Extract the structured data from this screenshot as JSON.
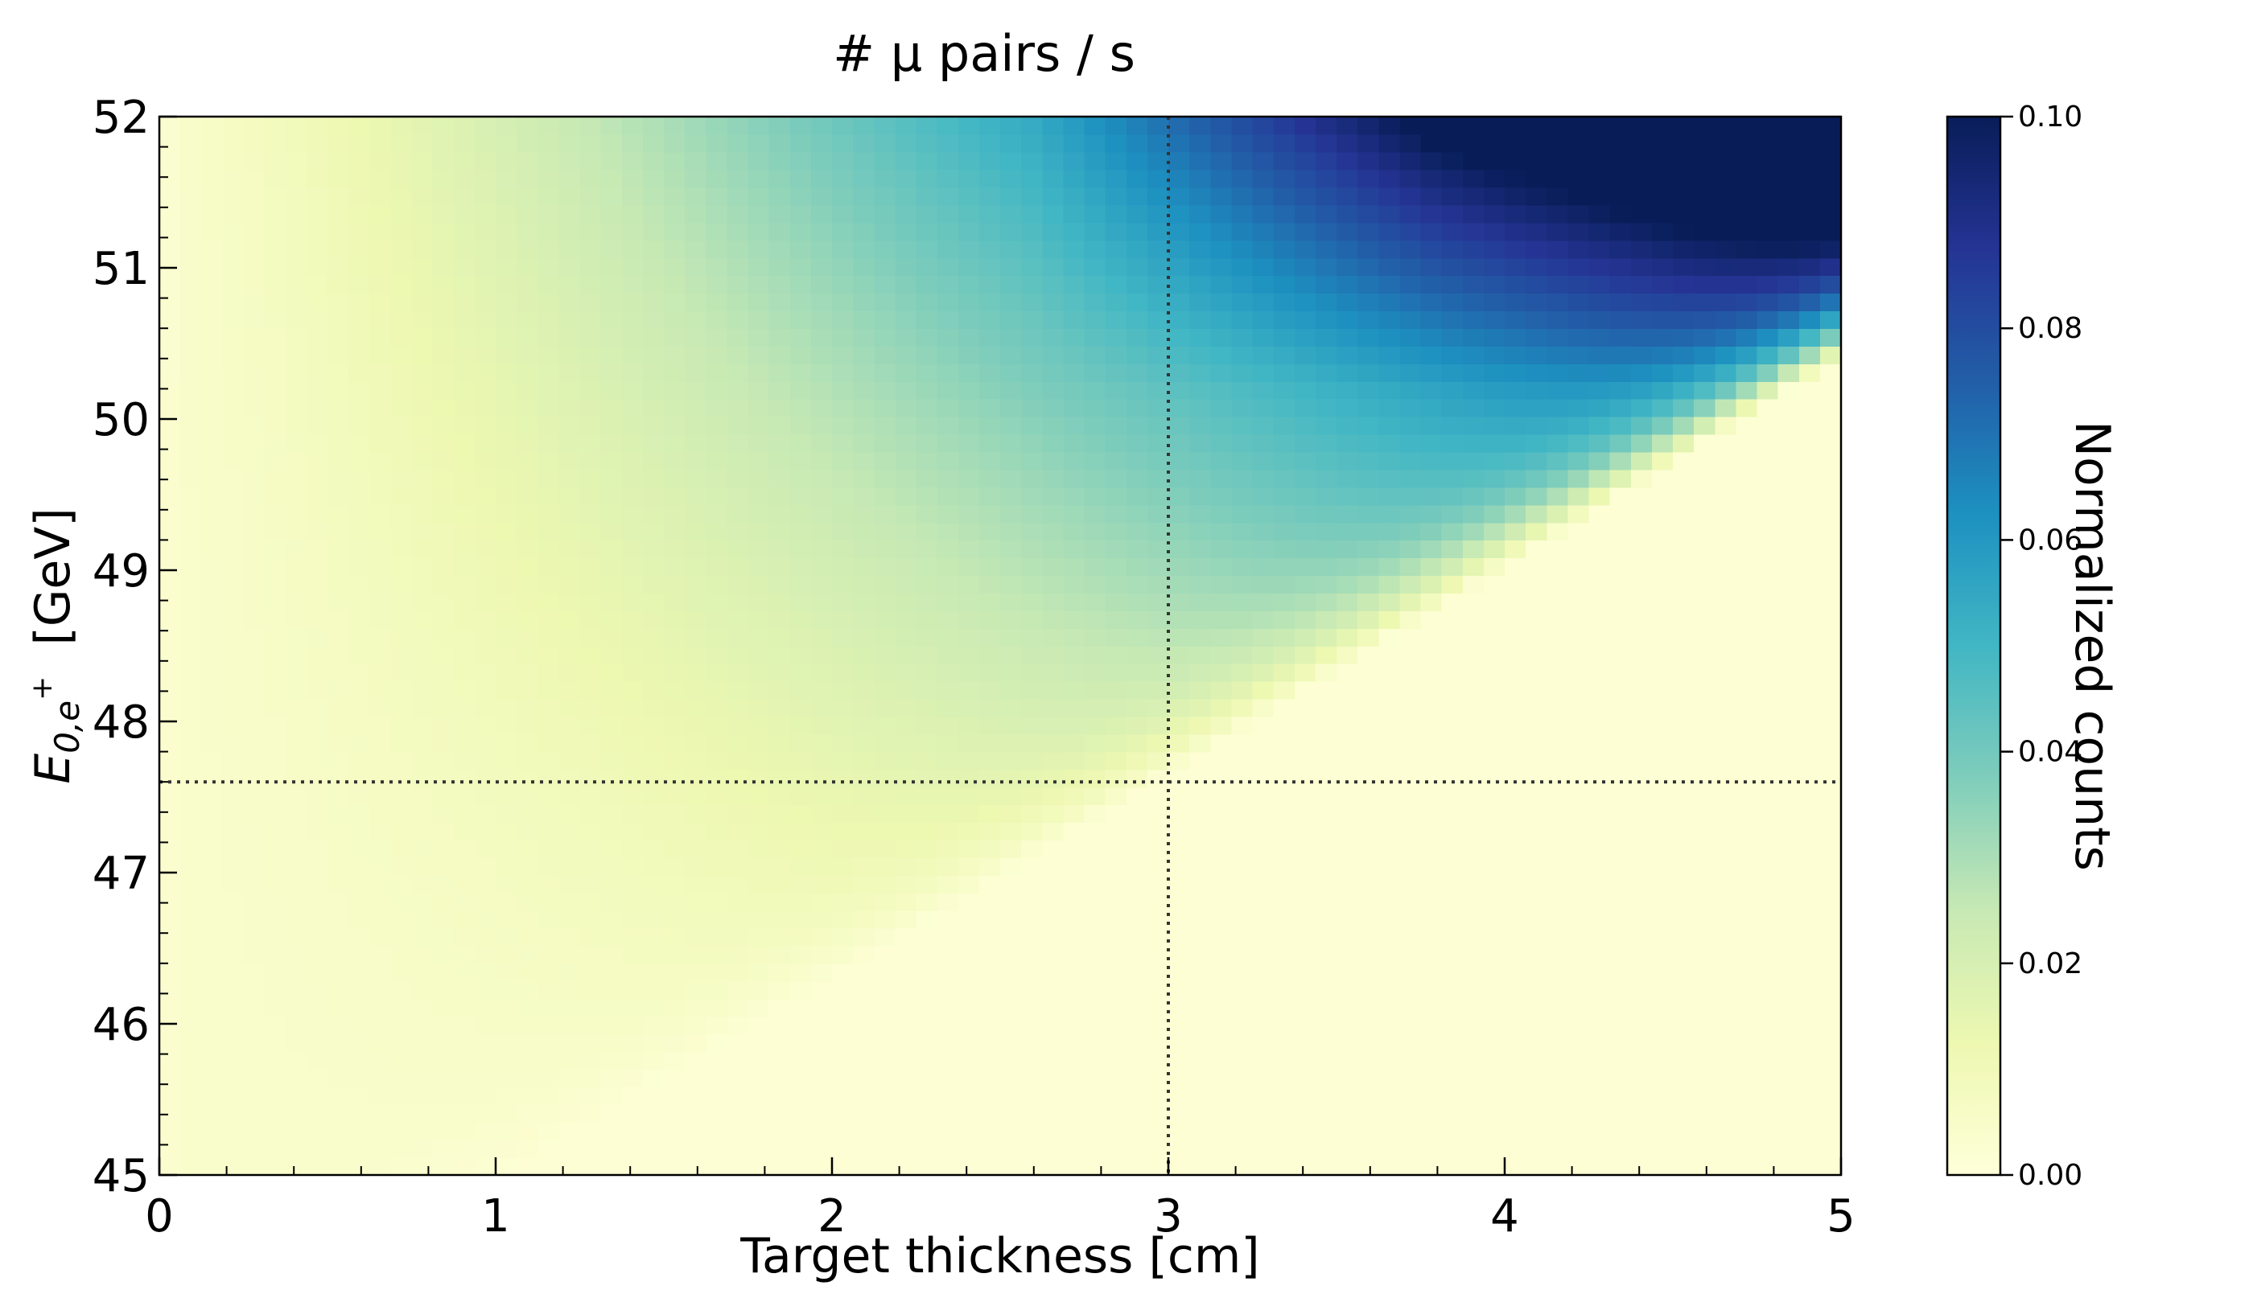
{
  "chart_data": {
    "type": "heatmap",
    "title": "# μ pairs / s",
    "xlabel": "Target thickness [cm]",
    "ylabel": {
      "main": "E",
      "sub": "0,e",
      "sup": "+",
      "unit": "[GeV]"
    },
    "xlim": [
      0,
      5
    ],
    "ylim": [
      45,
      52
    ],
    "x_ticks": [
      0,
      1,
      2,
      3,
      4,
      5
    ],
    "y_ticks": [
      45,
      46,
      47,
      48,
      49,
      50,
      51,
      52
    ],
    "colorbar": {
      "label": "Normalized counts",
      "range": [
        0.0,
        0.1
      ],
      "ticks": [
        0.0,
        0.02,
        0.04,
        0.06,
        0.08,
        0.1
      ],
      "tick_labels": [
        "0.00",
        "0.02",
        "0.04",
        "0.06",
        "0.08",
        "0.10"
      ],
      "colormap": "YlGnBu",
      "stops": [
        "#ffffd9",
        "#edf8b1",
        "#c7e9b4",
        "#7fcdbb",
        "#41b6c4",
        "#1d91c0",
        "#225ea8",
        "#253494",
        "#081d58"
      ]
    },
    "reference_lines": [
      {
        "orientation": "vertical",
        "x": 3.0,
        "style": "dotted"
      },
      {
        "orientation": "horizontal",
        "y": 47.6,
        "style": "dotted"
      }
    ],
    "cutoff_boundary": {
      "x": [
        1.1,
        5.0
      ],
      "y": [
        45.0,
        50.4
      ]
    },
    "grid": false,
    "legend": "none"
  }
}
